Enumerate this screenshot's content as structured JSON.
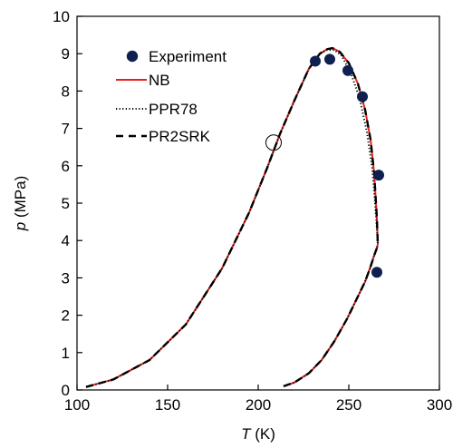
{
  "chart_data": {
    "type": "scatter",
    "xlabel": {
      "var": "T",
      "unit": " (K)"
    },
    "ylabel": {
      "var": "p",
      "unit": " (MPa)"
    },
    "xlim": [
      100,
      300
    ],
    "ylim": [
      0,
      10
    ],
    "xticks": [
      "100",
      "150",
      "200",
      "250",
      "300"
    ],
    "yticks": [
      "0",
      "1",
      "2",
      "3",
      "4",
      "5",
      "6",
      "7",
      "8",
      "9",
      "10"
    ],
    "grid": false,
    "legend_position": "top-left",
    "series": [
      {
        "name": "Experiment",
        "kind": "marker",
        "color": "#0f1f4f",
        "x": [
          231.5,
          239.5,
          249.5,
          257.5,
          266.5,
          265.5
        ],
        "y": [
          8.8,
          8.85,
          8.55,
          7.85,
          5.75,
          3.15
        ]
      },
      {
        "name": "NB",
        "kind": "line",
        "style": "solid",
        "color": "#e8211c",
        "dew_x": [
          105,
          120,
          140,
          160,
          180,
          195,
          205,
          212,
          220,
          228,
          234,
          238,
          241,
          245,
          250,
          255,
          259,
          262,
          264,
          265.5,
          266
        ],
        "dew_y": [
          0.08,
          0.28,
          0.8,
          1.75,
          3.25,
          4.75,
          5.95,
          6.85,
          7.75,
          8.6,
          9.0,
          9.12,
          9.15,
          9.05,
          8.75,
          8.2,
          7.5,
          6.7,
          5.8,
          4.6,
          3.9
        ],
        "bubble_x": [
          214,
          220,
          228,
          235,
          242,
          249,
          255,
          259,
          262,
          264,
          265.5,
          266
        ],
        "bubble_y": [
          0.1,
          0.2,
          0.45,
          0.8,
          1.3,
          1.9,
          2.5,
          2.9,
          3.3,
          3.6,
          3.8,
          3.9
        ]
      },
      {
        "name": "PPR78",
        "kind": "line",
        "style": "dotted",
        "color": "#000000",
        "dew_x": [
          105,
          120,
          140,
          160,
          180,
          195,
          205,
          212,
          220,
          228,
          234,
          238,
          242,
          246,
          251,
          256,
          260,
          263,
          264.5,
          265.5,
          266
        ],
        "dew_y": [
          0.08,
          0.28,
          0.8,
          1.75,
          3.25,
          4.75,
          5.95,
          6.85,
          7.75,
          8.6,
          9.0,
          9.1,
          9.1,
          8.95,
          8.5,
          7.8,
          6.9,
          5.9,
          5.0,
          4.3,
          3.9
        ],
        "bubble_x": [
          214,
          220,
          228,
          235,
          242,
          249,
          255,
          259,
          262,
          264,
          265.5,
          266
        ],
        "bubble_y": [
          0.1,
          0.2,
          0.45,
          0.8,
          1.3,
          1.9,
          2.5,
          2.9,
          3.3,
          3.6,
          3.8,
          3.9
        ]
      },
      {
        "name": "PR2SRK",
        "kind": "line",
        "style": "dashed",
        "color": "#000000",
        "dew_x": [
          105,
          120,
          140,
          160,
          180,
          195,
          205,
          212,
          220,
          228,
          234,
          238,
          241,
          245,
          250,
          255,
          259,
          262,
          264,
          265.5,
          266
        ],
        "dew_y": [
          0.08,
          0.28,
          0.8,
          1.75,
          3.25,
          4.75,
          5.95,
          6.85,
          7.75,
          8.6,
          9.0,
          9.12,
          9.15,
          9.05,
          8.75,
          8.2,
          7.5,
          6.7,
          5.8,
          4.6,
          3.9
        ],
        "bubble_x": [
          214,
          220,
          228,
          235,
          242,
          249,
          255,
          259,
          262,
          264,
          265.5,
          266
        ],
        "bubble_y": [
          0.1,
          0.2,
          0.45,
          0.8,
          1.3,
          1.9,
          2.5,
          2.9,
          3.3,
          3.6,
          3.8,
          3.9
        ]
      }
    ],
    "annotations": [
      {
        "type": "open-circle",
        "x": 208.5,
        "y": 6.62
      }
    ]
  }
}
